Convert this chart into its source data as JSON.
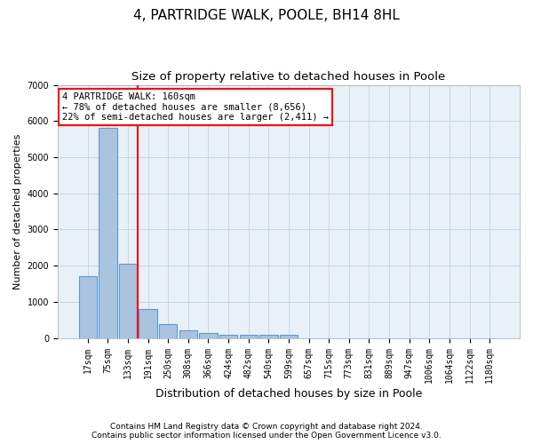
{
  "title1": "4, PARTRIDGE WALK, POOLE, BH14 8HL",
  "title2": "Size of property relative to detached houses in Poole",
  "xlabel": "Distribution of detached houses by size in Poole",
  "ylabel": "Number of detached properties",
  "bar_labels": [
    "17sqm",
    "75sqm",
    "133sqm",
    "191sqm",
    "250sqm",
    "308sqm",
    "366sqm",
    "424sqm",
    "482sqm",
    "540sqm",
    "599sqm",
    "657sqm",
    "715sqm",
    "773sqm",
    "831sqm",
    "889sqm",
    "947sqm",
    "1006sqm",
    "1064sqm",
    "1122sqm",
    "1180sqm"
  ],
  "bar_values": [
    1700,
    5800,
    2050,
    800,
    380,
    200,
    130,
    100,
    95,
    90,
    90,
    0,
    0,
    0,
    0,
    0,
    0,
    0,
    0,
    0,
    0
  ],
  "bar_color": "#aac4e0",
  "bar_edge_color": "#5b9bd5",
  "grid_color": "#c8d8e8",
  "background_color": "#e8f0f8",
  "ylim": [
    0,
    7000
  ],
  "yticks": [
    0,
    1000,
    2000,
    3000,
    4000,
    5000,
    6000,
    7000
  ],
  "red_line_index": 2,
  "annotation_text": "4 PARTRIDGE WALK: 160sqm\n← 78% of detached houses are smaller (8,656)\n22% of semi-detached houses are larger (2,411) →",
  "footer_line1": "Contains HM Land Registry data © Crown copyright and database right 2024.",
  "footer_line2": "Contains public sector information licensed under the Open Government Licence v3.0.",
  "title1_fontsize": 11,
  "title2_fontsize": 9.5,
  "xlabel_fontsize": 9,
  "ylabel_fontsize": 8,
  "tick_fontsize": 7,
  "footer_fontsize": 6.5,
  "annot_fontsize": 7.5
}
